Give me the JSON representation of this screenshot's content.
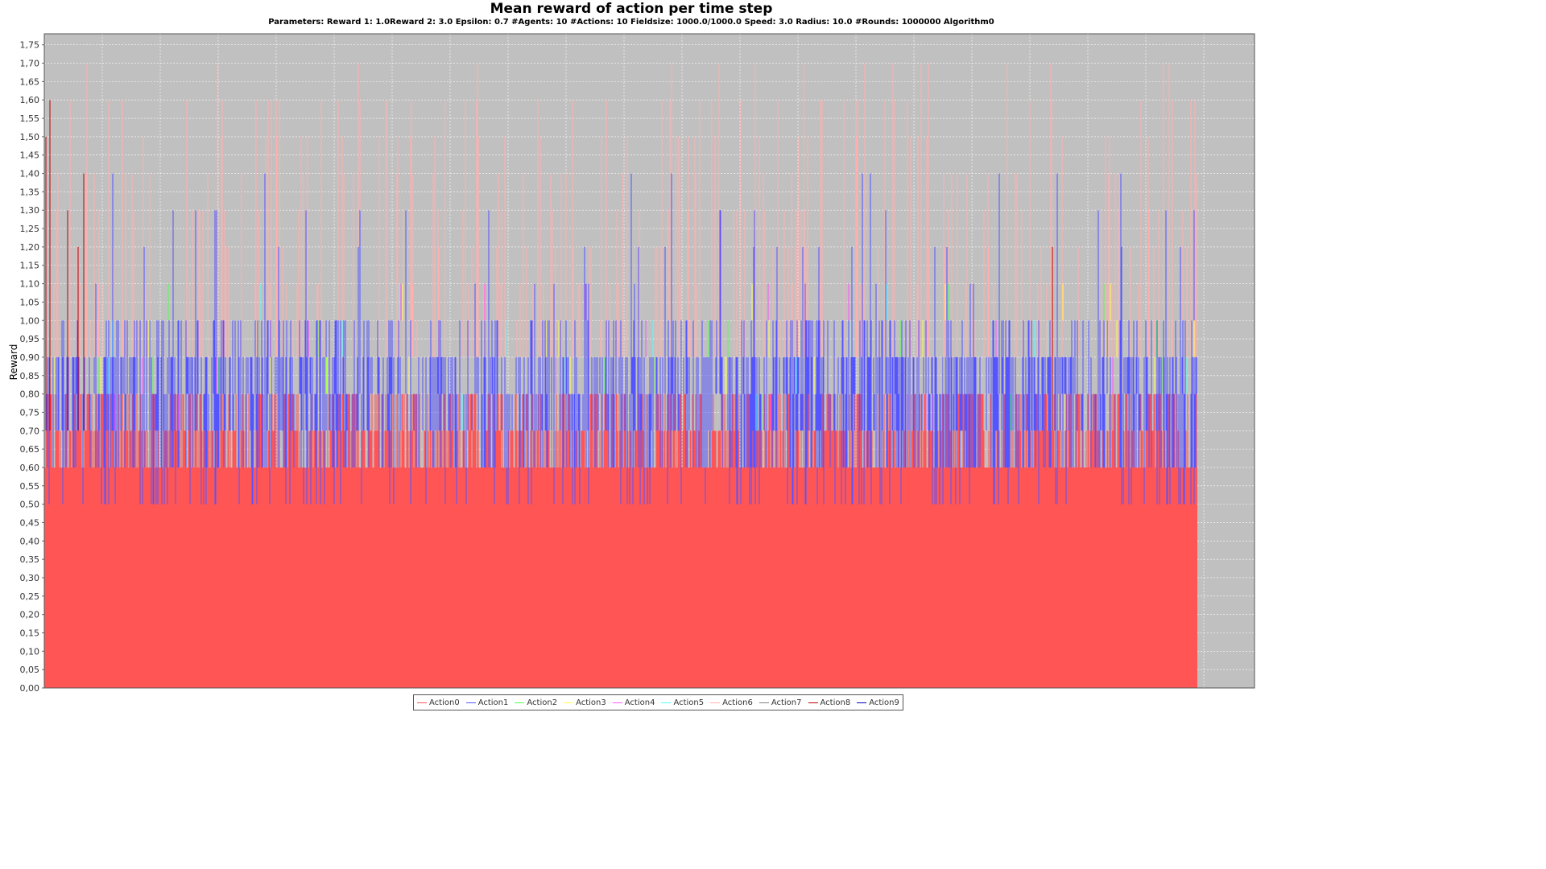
{
  "chart_data": {
    "type": "area",
    "title": "Mean reward of action per time step",
    "subtitle": "Parameters: Reward 1: 1.0Reward 2: 3.0 Epsilon: 0.7 #Agents: 10 #Actions: 10 Fieldsize: 1000.0/1000.0 Speed: 3.0 Radius: 10.0 #Rounds: 1000000 Algorithm0",
    "xlabel": "",
    "ylabel": "Reward",
    "ylim": [
      0,
      1.78
    ],
    "yticks": [
      "0,00",
      "0,05",
      "0,10",
      "0,15",
      "0,20",
      "0,25",
      "0,30",
      "0,35",
      "0,40",
      "0,45",
      "0,50",
      "0,55",
      "0,60",
      "0,65",
      "0,70",
      "0,75",
      "0,80",
      "0,85",
      "0,90",
      "0,95",
      "1,00",
      "1,05",
      "1,10",
      "1,15",
      "1,20",
      "1,25",
      "1,30",
      "1,35",
      "1,40",
      "1,45",
      "1,50",
      "1,55",
      "1,60",
      "1,65",
      "1,70",
      "1,75"
    ],
    "grid": true,
    "legend_position": "bottom",
    "background": "#c0c0c0",
    "series": [
      {
        "name": "Action0",
        "color": "#ff5555",
        "base_level": 0.6,
        "upper_level": 0.8,
        "peak": 1.7
      },
      {
        "name": "Action1",
        "color": "#5555ff",
        "base_level": 0.7,
        "upper_level": 0.9,
        "peak": 1.5
      },
      {
        "name": "Action2",
        "color": "#55ff55"
      },
      {
        "name": "Action3",
        "color": "#ffff55"
      },
      {
        "name": "Action4",
        "color": "#ff55ff"
      },
      {
        "name": "Action5",
        "color": "#55ffff"
      },
      {
        "name": "Action6",
        "color": "#ffafaf"
      },
      {
        "name": "Action7",
        "color": "#808080"
      },
      {
        "name": "Action8",
        "color": "#c00000"
      },
      {
        "name": "Action9",
        "color": "#0000c0"
      }
    ]
  }
}
